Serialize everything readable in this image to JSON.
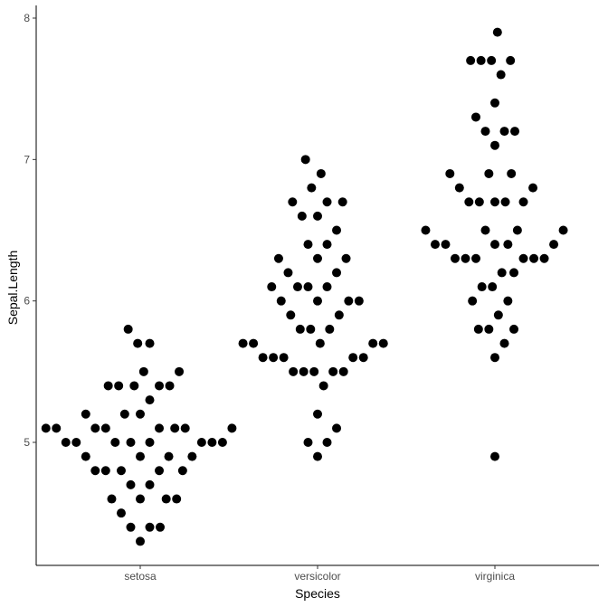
{
  "chart_data": {
    "type": "scatter",
    "subtype": "beeswarm",
    "xlabel": "Species",
    "ylabel": "Sepal.Length",
    "categories": [
      "setosa",
      "versicolor",
      "virginica"
    ],
    "yticks": [
      5,
      6,
      7,
      8
    ],
    "ylim": [
      4.13,
      8.1
    ],
    "grid": false,
    "point_color": "#000000",
    "series": [
      {
        "category": "setosa",
        "values": [
          5.1,
          4.9,
          4.7,
          4.6,
          5.0,
          5.4,
          4.6,
          5.0,
          4.4,
          4.9,
          5.4,
          4.8,
          4.8,
          4.3,
          5.8,
          5.7,
          5.4,
          5.1,
          5.7,
          5.1,
          5.4,
          5.1,
          4.6,
          5.1,
          4.8,
          5.0,
          5.0,
          5.2,
          5.2,
          4.7,
          4.8,
          5.4,
          5.2,
          5.5,
          4.9,
          5.0,
          5.5,
          4.9,
          4.4,
          5.1,
          5.0,
          4.5,
          4.4,
          5.0,
          5.1,
          4.8,
          5.1,
          4.6,
          5.3,
          5.0
        ]
      },
      {
        "category": "versicolor",
        "values": [
          7.0,
          6.4,
          6.9,
          5.5,
          6.5,
          5.7,
          6.3,
          4.9,
          6.6,
          5.2,
          5.0,
          5.9,
          6.0,
          6.1,
          5.6,
          6.7,
          5.6,
          5.8,
          6.2,
          5.6,
          5.9,
          6.1,
          6.3,
          6.1,
          6.4,
          6.6,
          6.8,
          6.7,
          6.0,
          5.7,
          5.5,
          5.5,
          5.8,
          6.0,
          5.4,
          6.0,
          6.7,
          6.3,
          5.6,
          5.5,
          5.5,
          6.1,
          5.8,
          5.0,
          5.6,
          5.7,
          5.7,
          6.2,
          5.1,
          5.7
        ]
      },
      {
        "category": "virginica",
        "values": [
          6.3,
          5.8,
          7.1,
          6.3,
          6.5,
          7.6,
          4.9,
          7.3,
          6.7,
          7.2,
          6.5,
          6.4,
          6.8,
          5.7,
          5.8,
          6.4,
          6.5,
          7.7,
          7.7,
          6.0,
          6.9,
          5.6,
          7.7,
          6.3,
          6.7,
          7.2,
          6.2,
          6.1,
          6.4,
          7.2,
          7.4,
          7.9,
          6.4,
          6.3,
          6.1,
          7.7,
          6.3,
          6.4,
          6.0,
          6.9,
          6.7,
          6.9,
          5.8,
          6.8,
          6.7,
          6.7,
          6.3,
          6.5,
          6.2,
          5.9
        ]
      }
    ]
  }
}
